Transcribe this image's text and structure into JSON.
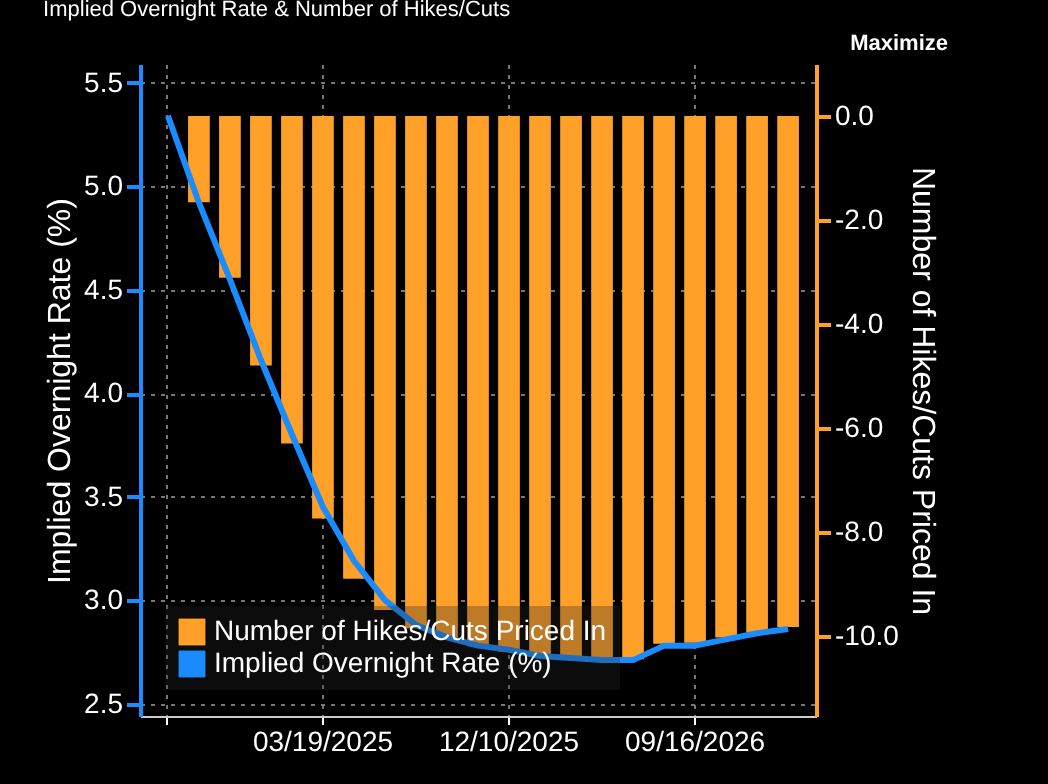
{
  "chart_data": {
    "type": "bar",
    "title": "Implied Overnight Rate & Number of Hikes/Cuts",
    "annotations": [
      "Maximize"
    ],
    "categories": [
      null,
      null,
      null,
      null,
      null,
      "03/19/2025",
      null,
      null,
      null,
      null,
      null,
      "12/10/2025",
      null,
      null,
      null,
      null,
      null,
      "09/16/2026",
      null,
      null,
      null
    ],
    "series": [
      {
        "name": "Number of Hikes/Cuts Priced In",
        "axis": "y2",
        "color": "#ffa028",
        "values": [
          0,
          -1.66,
          -3.11,
          -4.8,
          -6.3,
          -7.74,
          -8.9,
          -9.5,
          -9.85,
          -10.05,
          -10.2,
          -10.3,
          -10.35,
          -10.4,
          -10.45,
          -10.45,
          -10.15,
          -10.13,
          -10.03,
          -9.94,
          -9.83
        ]
      },
      {
        "name": "Implied Overnight Rate (%)",
        "type": "line",
        "color": "#1a8cff",
        "values": [
          5.34,
          4.92,
          4.55,
          4.16,
          3.8,
          3.45,
          3.19,
          3.0,
          2.88,
          2.82,
          2.78,
          2.76,
          2.73,
          2.72,
          2.71,
          2.71,
          2.78,
          2.78,
          2.81,
          2.84,
          2.86
        ]
      }
    ],
    "ylabel": "Implied Overnight Rate (%)",
    "y2label": "Number of Hikes/Cuts Priced In",
    "ylim": [
      2.44,
      5.59
    ],
    "yticks": [
      {
        "value": 2.5,
        "label": "2.5"
      },
      {
        "value": 3,
        "label": "3.0"
      },
      {
        "value": 3.5,
        "label": "3.5"
      },
      {
        "value": 4,
        "label": "4.0"
      },
      {
        "value": 4.5,
        "label": "4.5"
      },
      {
        "value": 5,
        "label": "5.0"
      },
      {
        "value": 5.5,
        "label": "5.5"
      }
    ],
    "y2lim": [
      -11.54,
      1.0
    ],
    "y2ticks": [
      {
        "value": -10,
        "label": "-10.0"
      },
      {
        "value": -8,
        "label": "-8.0"
      },
      {
        "value": -6,
        "label": "-6.0"
      },
      {
        "value": -4,
        "label": "-4.0"
      },
      {
        "value": -2,
        "label": "-2.0"
      },
      {
        "value": 0,
        "label": "0.0"
      }
    ],
    "grid": true,
    "legend": "bottom left"
  }
}
